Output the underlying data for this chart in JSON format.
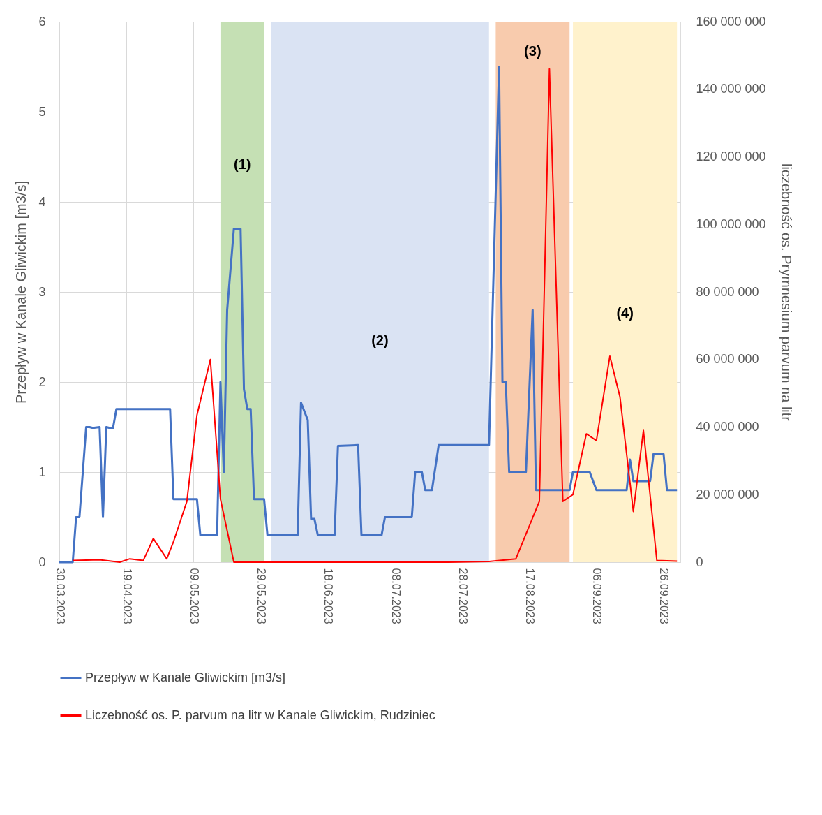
{
  "chart_data": {
    "type": "line",
    "ylabel": "Przepływ w Kanale Gliwickim [m3/s]",
    "y2label": "liczebność os.  Prymnesium parvum na litr",
    "xlim": [
      "2023-03-30",
      "2023-10-01"
    ],
    "xticks": [
      {
        "value": "2023-03-30",
        "label": "30.03.2023"
      },
      {
        "value": "2023-04-19",
        "label": "19.04.2023"
      },
      {
        "value": "2023-05-09",
        "label": "09.05.2023"
      },
      {
        "value": "2023-05-29",
        "label": "29.05.2023"
      },
      {
        "value": "2023-06-18",
        "label": "18.06.2023"
      },
      {
        "value": "2023-07-08",
        "label": "08.07.2023"
      },
      {
        "value": "2023-07-28",
        "label": "28.07.2023"
      },
      {
        "value": "2023-08-17",
        "label": "17.08.2023"
      },
      {
        "value": "2023-09-06",
        "label": "06.09.2023"
      },
      {
        "value": "2023-09-26",
        "label": "26.09.2023"
      }
    ],
    "ylim": [
      0,
      6
    ],
    "yticks": [
      0,
      1,
      2,
      3,
      4,
      5,
      6
    ],
    "y2lim": [
      0,
      160000000
    ],
    "y2ticks": [
      {
        "value": 0,
        "label": "0"
      },
      {
        "value": 20000000,
        "label": "20 000 000"
      },
      {
        "value": 40000000,
        "label": "40 000 000"
      },
      {
        "value": 60000000,
        "label": "60 000 000"
      },
      {
        "value": 80000000,
        "label": "80 000 000"
      },
      {
        "value": 100000000,
        "label": "100 000 000"
      },
      {
        "value": 120000000,
        "label": "120 000 000"
      },
      {
        "value": 140000000,
        "label": "140 000 000"
      },
      {
        "value": 160000000,
        "label": "160 000 000"
      }
    ],
    "grid": true,
    "legend": "bottom",
    "series": [
      {
        "name": "Przepływ w Kanale Gliwickim [m3/s]",
        "color": "#4472c4",
        "axis": "y",
        "x": [
          "2023-03-30",
          "2023-04-03",
          "2023-04-04",
          "2023-04-05",
          "2023-04-07",
          "2023-04-08",
          "2023-04-09",
          "2023-04-11",
          "2023-04-12",
          "2023-04-13",
          "2023-04-14",
          "2023-04-15",
          "2023-04-16",
          "2023-05-02",
          "2023-05-03",
          "2023-05-10",
          "2023-05-11",
          "2023-05-16",
          "2023-05-17",
          "2023-05-18",
          "2023-05-19",
          "2023-05-21",
          "2023-05-23",
          "2023-05-24",
          "2023-05-25",
          "2023-05-26",
          "2023-05-27",
          "2023-05-30",
          "2023-05-31",
          "2023-06-09",
          "2023-06-10",
          "2023-06-12",
          "2023-06-13",
          "2023-06-14",
          "2023-06-15",
          "2023-06-20",
          "2023-06-21",
          "2023-06-27",
          "2023-06-28",
          "2023-07-04",
          "2023-07-05",
          "2023-07-13",
          "2023-07-14",
          "2023-07-16",
          "2023-07-17",
          "2023-07-19",
          "2023-07-21",
          "2023-08-05",
          "2023-08-08",
          "2023-08-09",
          "2023-08-10",
          "2023-08-11",
          "2023-08-16",
          "2023-08-18",
          "2023-08-19",
          "2023-08-29",
          "2023-08-30",
          "2023-09-04",
          "2023-09-06",
          "2023-09-15",
          "2023-09-16",
          "2023-09-17",
          "2023-09-22",
          "2023-09-23",
          "2023-09-26",
          "2023-09-27",
          "2023-09-30"
        ],
        "values": [
          0,
          0,
          0.5,
          0.5,
          1.5,
          1.5,
          1.49,
          1.5,
          0.5,
          1.5,
          1.49,
          1.49,
          1.7,
          1.7,
          0.7,
          0.7,
          0.3,
          0.3,
          2.0,
          1.0,
          2.8,
          3.7,
          3.7,
          1.92,
          1.7,
          1.7,
          0.7,
          0.7,
          0.3,
          0.3,
          1.77,
          1.58,
          0.48,
          0.48,
          0.3,
          0.3,
          1.29,
          1.3,
          0.3,
          0.3,
          0.5,
          0.5,
          1.0,
          1.0,
          0.8,
          0.8,
          1.3,
          1.3,
          5.5,
          2.0,
          2.0,
          1.0,
          1.0,
          2.8,
          0.8,
          0.8,
          1.0,
          1.0,
          0.8,
          0.8,
          1.14,
          0.9,
          0.9,
          1.2,
          1.2,
          0.8,
          0.8
        ]
      },
      {
        "name": "Liczebność os. P. parvum na litr w Kanale Gliwickim, Rudziniec",
        "color": "#ff0000",
        "axis": "y2",
        "x": [
          "2023-04-03",
          "2023-04-11",
          "2023-04-17",
          "2023-04-20",
          "2023-04-24",
          "2023-04-27",
          "2023-05-01",
          "2023-05-03",
          "2023-05-07",
          "2023-05-10",
          "2023-05-14",
          "2023-05-17",
          "2023-05-21",
          "2023-07-24",
          "2023-08-05",
          "2023-08-13",
          "2023-08-20",
          "2023-08-23",
          "2023-08-27",
          "2023-08-30",
          "2023-09-03",
          "2023-09-06",
          "2023-09-10",
          "2023-09-13",
          "2023-09-17",
          "2023-09-20",
          "2023-09-24",
          "2023-09-30"
        ],
        "values": [
          500000,
          700000,
          0,
          1000000,
          500000,
          7000000,
          1000000,
          6000000,
          18000000,
          43500000,
          60000000,
          18700000,
          0,
          0,
          200000,
          1000000,
          18000000,
          146000000,
          18000000,
          20000000,
          38000000,
          36000000,
          61000000,
          49000000,
          15000000,
          39000000,
          500000,
          300000
        ]
      }
    ],
    "bands": [
      {
        "axis": "x",
        "from": "2023-05-17",
        "to": "2023-05-30",
        "color": "#c5e0b4",
        "label": "(1)"
      },
      {
        "axis": "x",
        "from": "2023-06-01",
        "to": "2023-08-05",
        "color": "#dae3f3",
        "label": "(2)"
      },
      {
        "axis": "x",
        "from": "2023-08-07",
        "to": "2023-08-29",
        "color": "#f8cbad",
        "label": "(3)"
      },
      {
        "axis": "x",
        "from": "2023-08-30",
        "to": "2023-09-30",
        "color": "#fff2cc",
        "label": "(4)"
      }
    ]
  }
}
